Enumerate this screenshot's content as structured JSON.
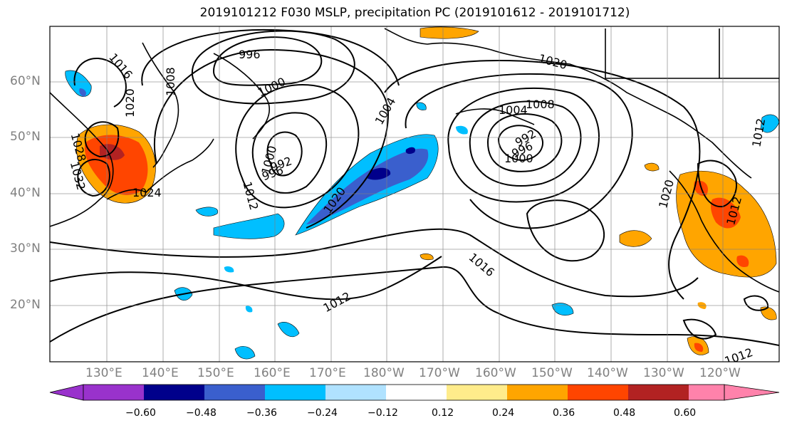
{
  "title": "2019101212 F030 MSLP, precipitation PC (2019101612 - 2019101712)",
  "latitude_labels": [
    "60°N",
    "50°N",
    "40°N",
    "30°N",
    "20°N"
  ],
  "longitude_labels": [
    "130°E",
    "140°E",
    "150°E",
    "160°E",
    "170°E",
    "180°W",
    "170°W",
    "160°W",
    "150°W",
    "140°W",
    "130°W",
    "120°W"
  ],
  "colorbar": {
    "tick_labels": [
      "−0.60",
      "−0.48",
      "−0.36",
      "−0.24",
      "−0.12",
      "0.12",
      "0.24",
      "0.36",
      "0.48",
      "0.60"
    ],
    "colors": [
      "#9932cc",
      "#00008b",
      "#3a5fcd",
      "#00bfff",
      "#b0e2ff",
      "#ffffff",
      "#ffec8b",
      "#ffa500",
      "#ff4500",
      "#b22222",
      "#ff82ab"
    ]
  },
  "pressure_contour_labels": [
    "996",
    "1016",
    "1008",
    "1000",
    "1020",
    "1004",
    "1020",
    "1004",
    "1008",
    "1024",
    "1028",
    "1032",
    "1000",
    "992",
    "996",
    "1012",
    "1020",
    "992",
    "996",
    "1000",
    "1020",
    "1012",
    "1016",
    "1012",
    "1012",
    "1012"
  ],
  "colors": {
    "contour": "#000000",
    "grid": "#808080",
    "coast": "#000000"
  }
}
